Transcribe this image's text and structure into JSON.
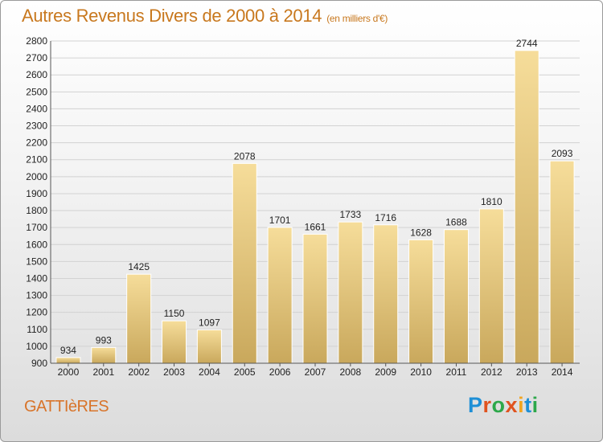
{
  "title": "Autres Revenus Divers de 2000 à 2014",
  "subtitle": "(en milliers d'€)",
  "location": "GATTIèRES",
  "logo": {
    "text": "Proxiti",
    "colors": [
      "#1e8fd6",
      "#e0531f",
      "#2da84a",
      "#e0531f",
      "#f2a51f",
      "#1e8fd6",
      "#2da84a"
    ]
  },
  "colors": {
    "title": "#c8781e",
    "bar_light": "#f6dd9a",
    "bar_dark": "#c9a85c"
  },
  "chart_data": {
    "type": "bar",
    "categories": [
      "2000",
      "2001",
      "2002",
      "2003",
      "2004",
      "2005",
      "2006",
      "2007",
      "2008",
      "2009",
      "2010",
      "2011",
      "2012",
      "2013",
      "2014"
    ],
    "values": [
      934,
      993,
      1425,
      1150,
      1097,
      2078,
      1701,
      1661,
      1733,
      1716,
      1628,
      1688,
      1810,
      2744,
      2093
    ],
    "ylim": [
      900,
      2800
    ],
    "yticks": [
      900,
      1000,
      1100,
      1200,
      1300,
      1400,
      1500,
      1600,
      1700,
      1800,
      1900,
      2000,
      2100,
      2200,
      2300,
      2400,
      2500,
      2600,
      2700,
      2800
    ],
    "grid": true,
    "xlabel": "",
    "ylabel": ""
  }
}
